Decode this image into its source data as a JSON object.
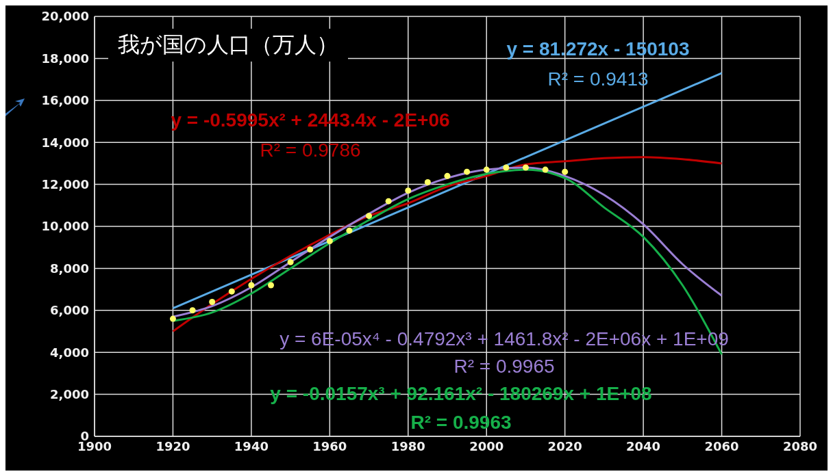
{
  "chart_data": {
    "type": "line",
    "title": "我が国の人口（万人）",
    "xlim": [
      1900,
      2080
    ],
    "xticks": [
      1900,
      1920,
      1940,
      1960,
      1980,
      2000,
      2020,
      2040,
      2060,
      2080
    ],
    "ylim": [
      0,
      20000
    ],
    "yticks": [
      {
        "value": 0,
        "label": "0"
      },
      {
        "value": 2000,
        "label": "2,000"
      },
      {
        "value": 4000,
        "label": "4,000"
      },
      {
        "value": 6000,
        "label": "6,000"
      },
      {
        "value": 8000,
        "label": "8,000"
      },
      {
        "value": 10000,
        "label": "10,000"
      },
      {
        "value": 12000,
        "label": "12,000"
      },
      {
        "value": 14000,
        "label": "14,000"
      },
      {
        "value": 16000,
        "label": "16,000"
      },
      {
        "value": 18000,
        "label": "18,000"
      },
      {
        "value": 20000,
        "label": "20,000"
      }
    ],
    "grid": true,
    "legend": false,
    "series": [
      {
        "type": "scatter",
        "marker": "circle",
        "color": "#ffff66",
        "x": [
          1920,
          1925,
          1930,
          1935,
          1940,
          1945,
          1950,
          1955,
          1960,
          1965,
          1970,
          1975,
          1980,
          1985,
          1990,
          1995,
          2000,
          2005,
          2010,
          2015,
          2020
        ],
        "values": [
          5600,
          6000,
          6400,
          6900,
          7200,
          7200,
          8300,
          8900,
          9300,
          9800,
          10500,
          11200,
          11700,
          12100,
          12400,
          12600,
          12700,
          12800,
          12800,
          12700,
          12600
        ]
      },
      {
        "marker": "none",
        "color": "#5aabe6",
        "x": [
          1920,
          2060
        ],
        "values": [
          6100,
          17300
        ]
      },
      {
        "marker": "none",
        "color": "#c00000",
        "x": [
          1920,
          1930,
          1940,
          1950,
          1960,
          1970,
          1980,
          1990,
          2000,
          2010,
          2020,
          2030,
          2040,
          2050,
          2060
        ],
        "values": [
          5000,
          6300,
          7500,
          8600,
          9600,
          10500,
          11100,
          11900,
          12400,
          12950,
          13100,
          13250,
          13300,
          13200,
          13000
        ]
      },
      {
        "marker": "none",
        "color": "#9b7fd4",
        "x": [
          1920,
          1930,
          1940,
          1950,
          1960,
          1970,
          1980,
          1990,
          2000,
          2010,
          2020,
          2030,
          2040,
          2050,
          2060
        ],
        "values": [
          5700,
          6200,
          7100,
          8300,
          9500,
          10600,
          11600,
          12300,
          12700,
          12800,
          12400,
          11500,
          10100,
          8200,
          6700
        ]
      },
      {
        "marker": "none",
        "color": "#16b04a",
        "x": [
          1920,
          1930,
          1940,
          1950,
          1960,
          1970,
          1980,
          1990,
          2000,
          2010,
          2020,
          2030,
          2040,
          2050,
          2060
        ],
        "values": [
          5500,
          5900,
          6800,
          8000,
          9200,
          10300,
          11300,
          12000,
          12500,
          12700,
          12300,
          10900,
          9500,
          7200,
          3900
        ]
      }
    ],
    "annotations": [
      "y = 81.272x - 150103",
      "R² = 0.9413",
      "y = -0.5995x² + 2443.4x - 2E+06",
      "R² = 0.9786",
      "y = 6E-05x⁴ - 0.4792x³ + 1461.8x² - 2E+06x + 1E+09",
      "R² = 0.9965",
      "y = -0.0157x³ + 92.161x² - 180269x + 1E+08",
      "R² = 0.9963"
    ]
  }
}
